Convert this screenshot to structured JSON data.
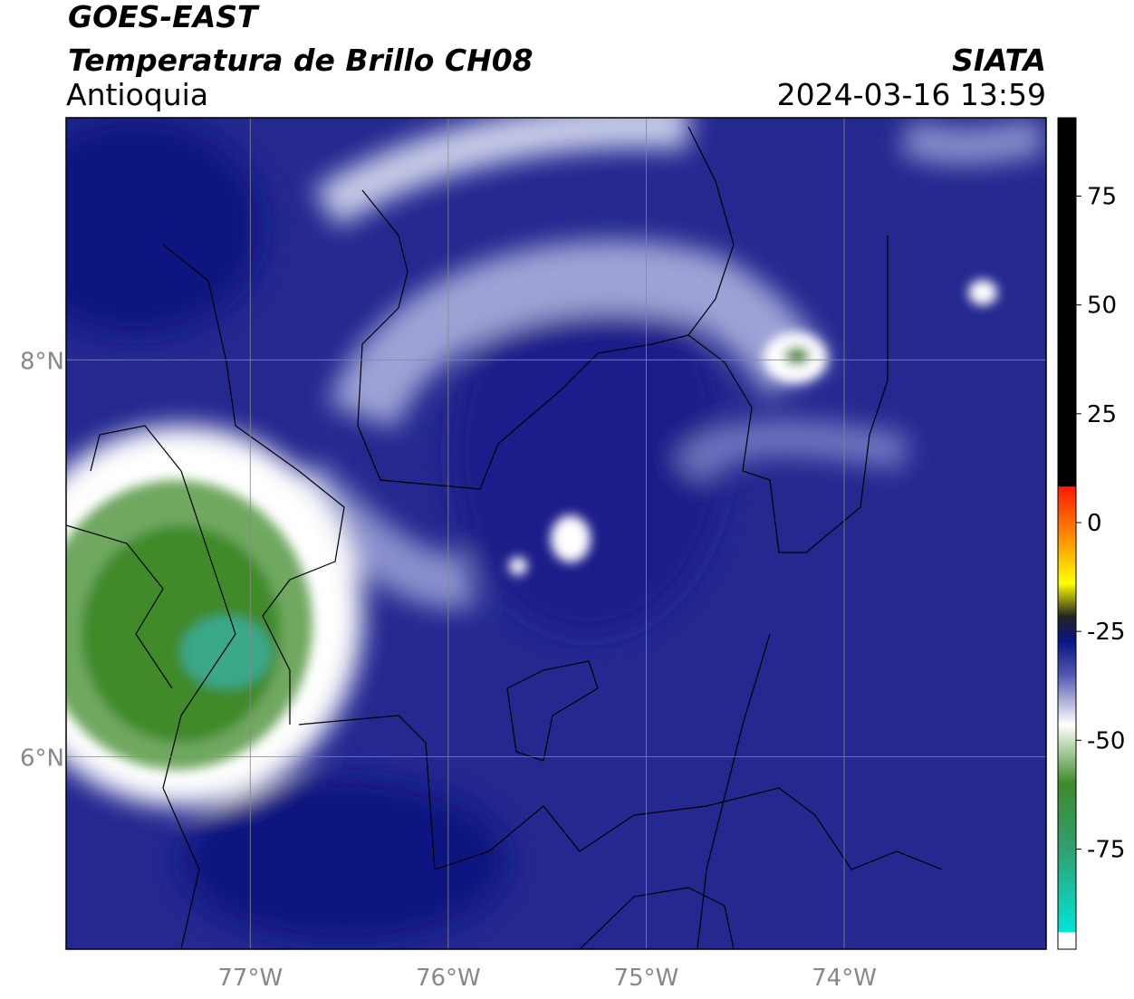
{
  "header": {
    "satellite": "GOES-EAST",
    "title": "Temperatura de Brillo CH08",
    "region": "Antioquia",
    "agency": "SIATA",
    "datetime": "2024-03-16 13:59"
  },
  "map": {
    "lon_range": [
      -77.93,
      -72.98
    ],
    "lat_range": [
      5.03,
      9.22
    ],
    "lat_ticks": [
      {
        "value": 8,
        "label": "8°N"
      },
      {
        "value": 6,
        "label": "6°N"
      }
    ],
    "lon_ticks": [
      {
        "value": -77,
        "label": "77°W"
      },
      {
        "value": -76,
        "label": "76°W"
      },
      {
        "value": -75,
        "label": "75°W"
      },
      {
        "value": -74,
        "label": "74°W"
      }
    ]
  },
  "colorbar": {
    "lim": [
      -98,
      93
    ],
    "ticks": [
      75,
      50,
      25,
      0,
      -25,
      -50,
      -75
    ]
  }
}
